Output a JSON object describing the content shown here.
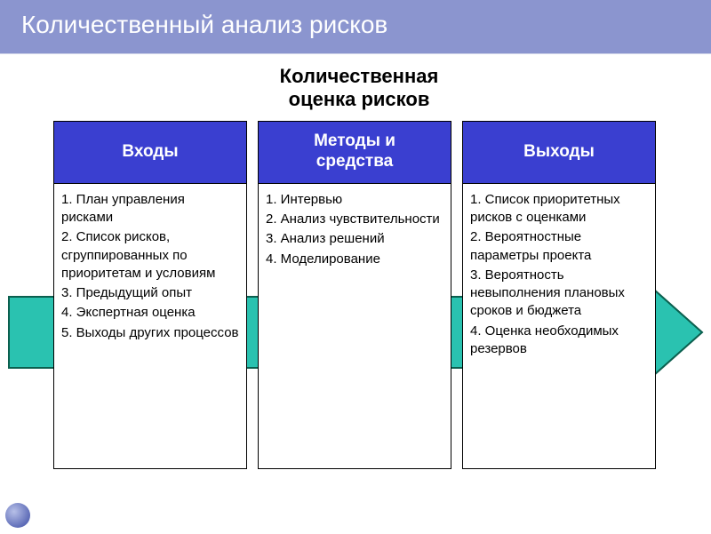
{
  "page": {
    "title": "Количественный анализ рисков",
    "title_bg": "#8b95cf",
    "title_fg": "#ffffff",
    "title_fontsize": 28
  },
  "diagram": {
    "subtitle": "Количественная\nоценка рисков",
    "subtitle_fg": "#000000",
    "subtitle_fontsize": 22,
    "header_bg": "#3a3fd0",
    "header_fontsize": 19,
    "body_fontsize": 15,
    "arrow": {
      "shaft_fill": "#2ac2b0",
      "shaft_stroke": "#0b5f4e",
      "head_fill": "#7fe3d6"
    },
    "columns": [
      {
        "header": "Входы",
        "items": [
          "1. План управления рисками",
          "2. Список рисков, сгруппированных по приоритетам и условиям",
          "3. Предыдущий опыт",
          "4. Экспертная оценка",
          "5. Выходы других процессов"
        ]
      },
      {
        "header": "Методы и\nсредства",
        "items": [
          "1.  Интервью",
          "2.  Анализ чувствительности",
          "3.  Анализ решений",
          "4.  Моделирование"
        ]
      },
      {
        "header": "Выходы",
        "items": [
          "1. Список приоритетных рисков с оценками",
          "2. Вероятностные параметры проекта",
          "3. Вероятность невыполнения плановых сроков и бюджета",
          "4. Оценка необходимых резервов"
        ]
      }
    ]
  },
  "bullet_color": "#6a78c0"
}
